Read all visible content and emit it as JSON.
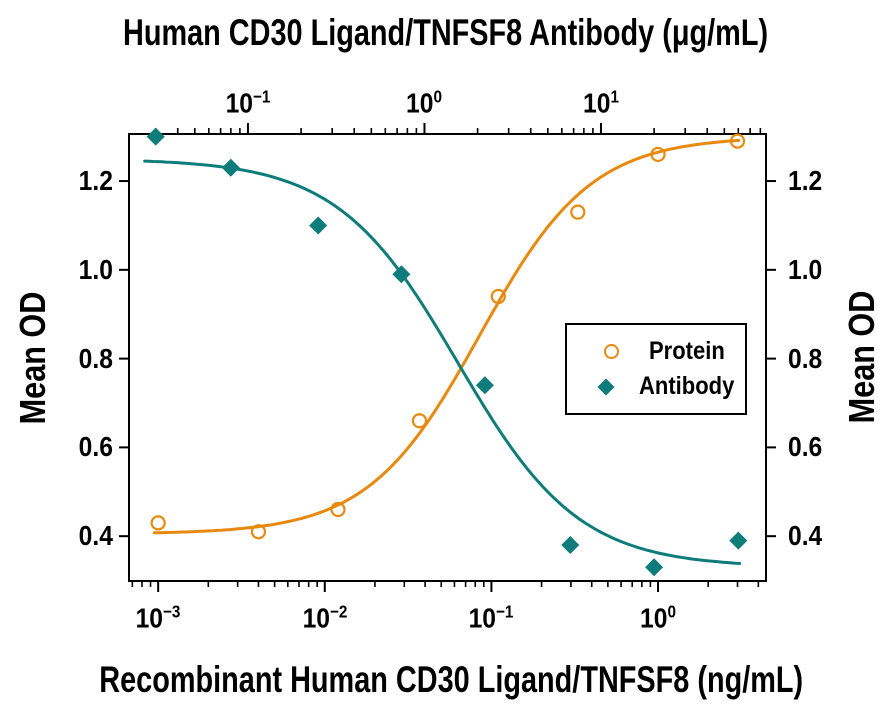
{
  "figure": {
    "background_color": "#FFFFFF",
    "axis_color": "#000000",
    "text_color": "#000000"
  },
  "chart_data": {
    "type": "line",
    "title": "",
    "grid": false,
    "axes": {
      "top": {
        "label": "Human CD30 Ligand/TNFSF8 Antibody (μg/mL)",
        "scale": "log",
        "log_range": [
          -1.674,
          1.935
        ],
        "major_tick_exponents": [
          -1,
          0,
          1
        ]
      },
      "bottom": {
        "label": "Recombinant Human CD30 Ligand/TNFSF8 (ng/mL)",
        "scale": "log",
        "log_range": [
          -3.175,
          0.648
        ],
        "major_tick_exponents": [
          -3,
          -2,
          -1,
          0
        ]
      },
      "left": {
        "label": "Mean OD",
        "range": [
          0.299,
          1.306
        ],
        "ticks": [
          0.4,
          0.6,
          0.8,
          1.0,
          1.2
        ]
      },
      "right": {
        "label": "Mean OD",
        "range": [
          0.299,
          1.306
        ],
        "ticks": [
          0.4,
          0.6,
          0.8,
          1.0,
          1.2
        ]
      }
    },
    "series": [
      {
        "name": "Protein",
        "axis": "bottom",
        "units": "ng/mL",
        "marker": "open-circle",
        "color": "#E8890D",
        "trend": "increasing",
        "x": [
          0.001,
          0.004,
          0.012,
          0.037,
          0.11,
          0.33,
          1.0,
          3.0
        ],
        "od": [
          0.43,
          0.41,
          0.46,
          0.66,
          0.94,
          1.13,
          1.26,
          1.29
        ],
        "fit": {
          "min": 0.405,
          "max": 1.3,
          "ec50": 0.085,
          "hill": 1.3
        },
        "curve_x_range": [
          0.00095,
          3.05
        ]
      },
      {
        "name": "Antibody",
        "axis": "top",
        "units": "μg/mL",
        "marker": "filled-diamond",
        "color": "#0E7C7B",
        "trend": "decreasing",
        "x": [
          0.03,
          0.08,
          0.25,
          0.74,
          2.2,
          6.7,
          20,
          60
        ],
        "od": [
          1.3,
          1.23,
          1.1,
          0.99,
          0.74,
          0.38,
          0.33,
          0.39
        ],
        "fit": {
          "min": 0.33,
          "max": 1.25,
          "ec50": 1.55,
          "hill": 1.27
        },
        "curve_x_range": [
          0.026,
          61
        ]
      }
    ],
    "legend": {
      "position": "inside-right",
      "items": [
        {
          "label": "Protein",
          "marker": "open-circle"
        },
        {
          "label": "Antibody",
          "marker": "filled-diamond"
        }
      ]
    }
  }
}
